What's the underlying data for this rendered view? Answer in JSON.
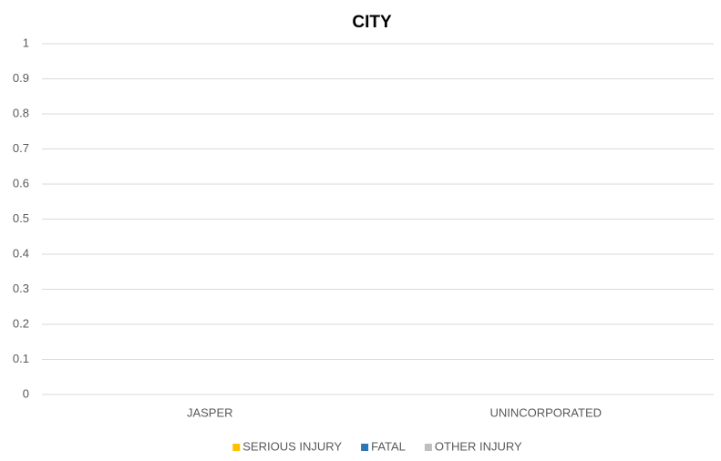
{
  "chart_data": {
    "type": "bar",
    "stacked": true,
    "title": "CITY",
    "categories": [
      "JASPER",
      "UNINCORPORATED"
    ],
    "series": [
      {
        "name": "SERIOUS INJURY",
        "color": "#ffc000",
        "values": [
          0,
          0
        ]
      },
      {
        "name": "FATAL",
        "color": "#2e75b6",
        "values": [
          0,
          0
        ]
      },
      {
        "name": "OTHER INJURY",
        "color": "#bfbfbf",
        "values": [
          0,
          0
        ]
      }
    ],
    "ylim": [
      0,
      1
    ],
    "yticks": [
      0,
      0.1,
      0.2,
      0.3,
      0.4,
      0.5,
      0.6,
      0.7,
      0.8,
      0.9,
      1
    ],
    "grid": true,
    "legend": "bottom"
  }
}
